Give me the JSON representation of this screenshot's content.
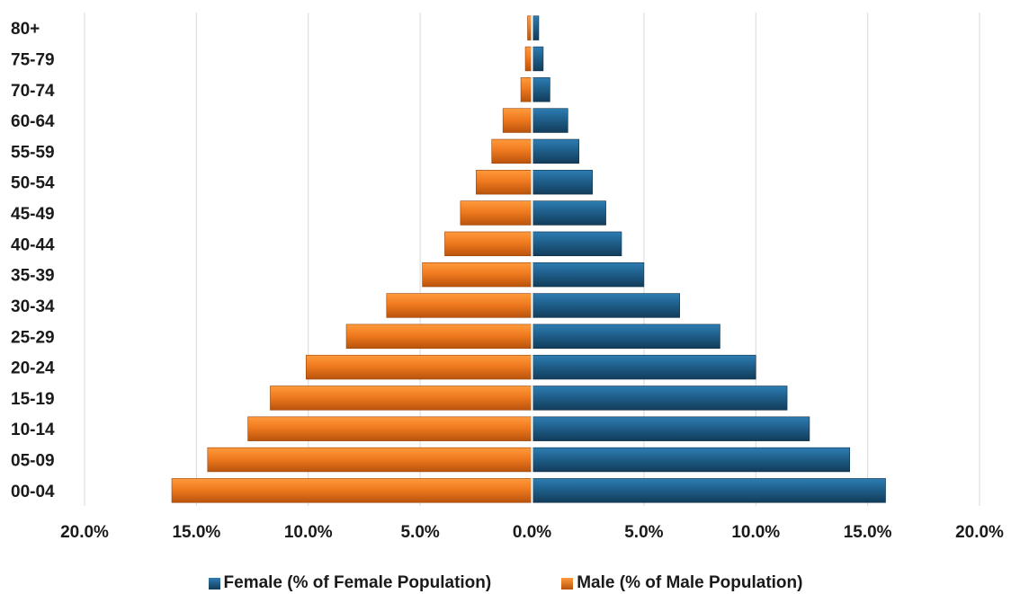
{
  "chart_data": {
    "type": "bar",
    "orientation": "horizontal",
    "categories": [
      "80+",
      "75-79",
      "70-74",
      "60-64",
      "55-59",
      "50-54",
      "45-49",
      "40-44",
      "35-39",
      "30-34",
      "25-29",
      "20-24",
      "15-19",
      "10-14",
      "05-09",
      "00-04"
    ],
    "series": [
      {
        "name": "Female (% of Female Population)",
        "color": "#1f5f8b",
        "values": [
          0.3,
          0.5,
          0.8,
          1.6,
          2.1,
          2.7,
          3.3,
          4.0,
          5.0,
          6.6,
          8.4,
          10.0,
          11.4,
          12.4,
          14.2,
          15.8
        ]
      },
      {
        "name": "Male (% of Male Population)",
        "color": "#f07a1f",
        "values": [
          0.2,
          0.3,
          0.5,
          1.3,
          1.8,
          2.5,
          3.2,
          3.9,
          4.9,
          6.5,
          8.3,
          10.1,
          11.7,
          12.7,
          14.5,
          16.1
        ]
      }
    ],
    "xlim": [
      -20,
      20
    ],
    "xticks": [
      "20.0%",
      "15.0%",
      "10.0%",
      "5.0%",
      "0.0%",
      "5.0%",
      "10.0%",
      "15.0%",
      "20.0%"
    ],
    "grid": true,
    "legend_position": "bottom"
  },
  "legend": {
    "female": "Female (% of Female Population)",
    "male": "Male (% of Male Population)"
  }
}
